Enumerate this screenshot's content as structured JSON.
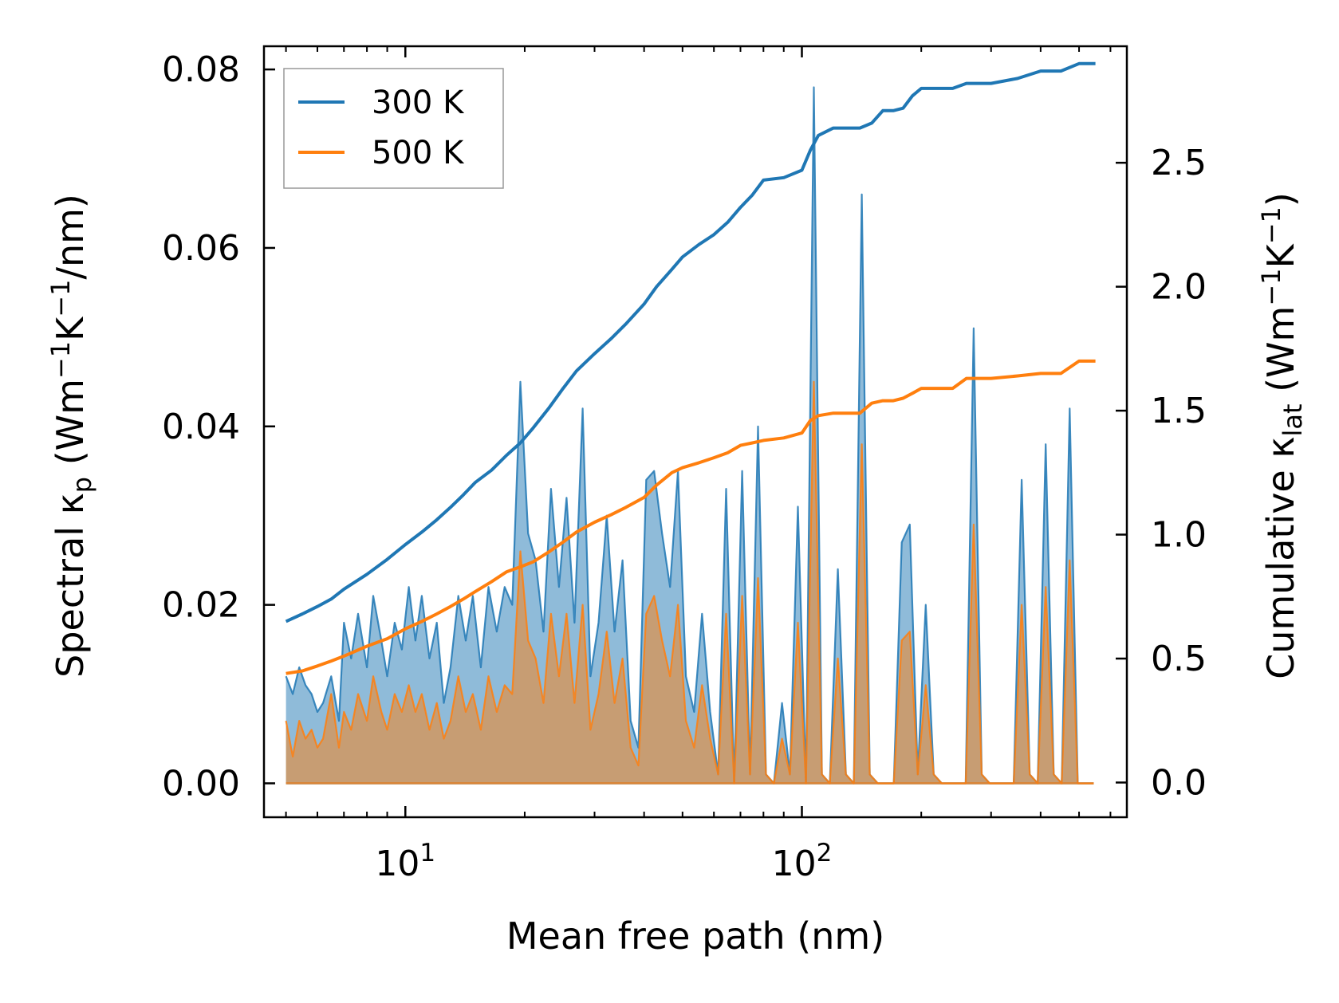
{
  "chart_data": {
    "type": "line",
    "xscale": "log",
    "xlim": [
      4.4,
      660
    ],
    "ylim_left": [
      -0.0038,
      0.0826
    ],
    "ylim_right": [
      -0.14,
      2.97
    ],
    "xlabel": "Mean free path (nm)",
    "ylabel_left": {
      "main": "Spectral κ",
      "sub": "p",
      "paren_open": " (Wm",
      "sup1": "−1",
      "mid": "K",
      "sup2": "−1",
      "tail": "/nm)"
    },
    "ylabel_right": {
      "main": "Cumulative κ",
      "sub": "lat",
      "paren_open": " (Wm",
      "sup1": "−1",
      "mid": "K",
      "sup2": "−1",
      "tail": ")"
    },
    "x_ticks": [
      {
        "value": 10,
        "base": "10",
        "exp": "1"
      },
      {
        "value": 100,
        "base": "10",
        "exp": "2"
      }
    ],
    "y_ticks_left": [
      {
        "value": 0.0,
        "label": "0.00"
      },
      {
        "value": 0.02,
        "label": "0.02"
      },
      {
        "value": 0.04,
        "label": "0.04"
      },
      {
        "value": 0.06,
        "label": "0.06"
      },
      {
        "value": 0.08,
        "label": "0.08"
      }
    ],
    "y_ticks_right": [
      {
        "value": 0.0,
        "label": "0.0"
      },
      {
        "value": 0.5,
        "label": "0.5"
      },
      {
        "value": 1.0,
        "label": "1.0"
      },
      {
        "value": 1.5,
        "label": "1.5"
      },
      {
        "value": 2.0,
        "label": "2.0"
      },
      {
        "value": 2.5,
        "label": "2.5"
      }
    ],
    "legend": {
      "position": "top-left",
      "entries": [
        {
          "name": "300 K",
          "color": "#1f77b4"
        },
        {
          "name": "500 K",
          "color": "#ff7f0e"
        }
      ]
    },
    "spectral": [
      {
        "name": "300 K",
        "color": "#1f77b4",
        "fill_opacity": 0.5,
        "x": [
          5.0,
          5.2,
          5.4,
          5.6,
          5.8,
          6.0,
          6.2,
          6.5,
          6.8,
          7.0,
          7.3,
          7.6,
          8.0,
          8.3,
          8.7,
          9.0,
          9.4,
          9.8,
          10.2,
          10.6,
          11.0,
          11.5,
          12.0,
          12.5,
          13.0,
          13.6,
          14.2,
          14.8,
          15.5,
          16.2,
          17.0,
          17.8,
          18.6,
          19.5,
          20.4,
          21.3,
          22.3,
          23.3,
          24.4,
          25.5,
          26.7,
          28.0,
          29.3,
          30.7,
          32.2,
          33.7,
          35.3,
          37.0,
          38.7,
          40.5,
          42.4,
          44.4,
          46.5,
          48.7,
          51.0,
          53.5,
          56.0,
          58.7,
          61.5,
          64.4,
          67.5,
          70.7,
          74.0,
          77.5,
          81.2,
          85.0,
          89.1,
          93.3,
          97.7,
          102.4,
          107.2,
          112.3,
          117.6,
          123.2,
          129.1,
          135.2,
          141.6,
          148.3,
          155.4,
          162.8,
          170.5,
          178.6,
          187.1,
          196.0,
          205.3,
          215.0,
          225.3,
          236.0,
          247.2,
          258.9,
          271.2,
          284.1,
          297.6,
          311.8,
          326.6,
          342.1,
          358.4,
          375.4,
          393.3,
          412.0,
          431.6,
          452.1,
          473.6,
          496.1,
          519.7,
          544.4
        ],
        "y": [
          0.012,
          0.01,
          0.013,
          0.011,
          0.01,
          0.008,
          0.009,
          0.012,
          0.007,
          0.018,
          0.014,
          0.019,
          0.013,
          0.021,
          0.016,
          0.012,
          0.018,
          0.015,
          0.022,
          0.016,
          0.021,
          0.014,
          0.018,
          0.009,
          0.013,
          0.021,
          0.016,
          0.021,
          0.013,
          0.022,
          0.017,
          0.022,
          0.02,
          0.045,
          0.028,
          0.025,
          0.017,
          0.033,
          0.022,
          0.032,
          0.018,
          0.042,
          0.012,
          0.018,
          0.03,
          0.017,
          0.025,
          0.007,
          0.004,
          0.034,
          0.035,
          0.028,
          0.022,
          0.035,
          0.012,
          0.008,
          0.019,
          0.008,
          0.001,
          0.033,
          0.0,
          0.035,
          0.001,
          0.04,
          0.001,
          0.0,
          0.009,
          0.001,
          0.031,
          0.0,
          0.078,
          0.001,
          0.0,
          0.024,
          0.001,
          0.0,
          0.066,
          0.001,
          0.0,
          0.0,
          0.0,
          0.027,
          0.029,
          0.001,
          0.02,
          0.001,
          0.0,
          0.0,
          0.0,
          0.0,
          0.051,
          0.001,
          0.0,
          0.0,
          0.0,
          0.0,
          0.034,
          0.001,
          0.0,
          0.038,
          0.001,
          0.0,
          0.042,
          0.0,
          0.0,
          0.0
        ]
      },
      {
        "name": "500 K",
        "color": "#ff7f0e",
        "fill_opacity": 0.5,
        "x": [
          5.0,
          5.2,
          5.4,
          5.6,
          5.8,
          6.0,
          6.2,
          6.5,
          6.8,
          7.0,
          7.3,
          7.6,
          8.0,
          8.3,
          8.7,
          9.0,
          9.4,
          9.8,
          10.2,
          10.6,
          11.0,
          11.5,
          12.0,
          12.5,
          13.0,
          13.6,
          14.2,
          14.8,
          15.5,
          16.2,
          17.0,
          17.8,
          18.6,
          19.5,
          20.4,
          21.3,
          22.3,
          23.3,
          24.4,
          25.5,
          26.7,
          28.0,
          29.3,
          30.7,
          32.2,
          33.7,
          35.3,
          37.0,
          38.7,
          40.5,
          42.4,
          44.4,
          46.5,
          48.7,
          51.0,
          53.5,
          56.0,
          58.7,
          61.5,
          64.4,
          67.5,
          70.7,
          74.0,
          77.5,
          81.2,
          85.0,
          89.1,
          93.3,
          97.7,
          102.4,
          107.2,
          112.3,
          117.6,
          123.2,
          129.1,
          135.2,
          141.6,
          148.3,
          155.4,
          162.8,
          170.5,
          178.6,
          187.1,
          196.0,
          205.3,
          215.0,
          225.3,
          236.0,
          247.2,
          258.9,
          271.2,
          284.1,
          297.6,
          311.8,
          326.6,
          342.1,
          358.4,
          375.4,
          393.3,
          412.0,
          431.6,
          452.1,
          473.6,
          496.1,
          519.7,
          544.4
        ],
        "y": [
          0.007,
          0.003,
          0.007,
          0.005,
          0.006,
          0.004,
          0.005,
          0.01,
          0.004,
          0.008,
          0.006,
          0.01,
          0.007,
          0.012,
          0.008,
          0.006,
          0.01,
          0.008,
          0.011,
          0.008,
          0.01,
          0.006,
          0.009,
          0.005,
          0.007,
          0.012,
          0.008,
          0.01,
          0.006,
          0.012,
          0.008,
          0.011,
          0.01,
          0.026,
          0.016,
          0.014,
          0.009,
          0.019,
          0.012,
          0.019,
          0.009,
          0.02,
          0.006,
          0.01,
          0.017,
          0.009,
          0.014,
          0.004,
          0.002,
          0.019,
          0.021,
          0.016,
          0.012,
          0.02,
          0.007,
          0.004,
          0.011,
          0.005,
          0.001,
          0.019,
          0.0,
          0.021,
          0.001,
          0.023,
          0.001,
          0.0,
          0.005,
          0.001,
          0.018,
          0.0,
          0.045,
          0.001,
          0.0,
          0.014,
          0.001,
          0.0,
          0.038,
          0.001,
          0.0,
          0.0,
          0.0,
          0.016,
          0.017,
          0.001,
          0.011,
          0.001,
          0.0,
          0.0,
          0.0,
          0.0,
          0.029,
          0.001,
          0.0,
          0.0,
          0.0,
          0.0,
          0.02,
          0.001,
          0.0,
          0.022,
          0.001,
          0.0,
          0.025,
          0.0,
          0.0,
          0.0
        ]
      }
    ],
    "cumulative": [
      {
        "name": "300 K",
        "color": "#1f77b4",
        "x": [
          5.0,
          5.5,
          6.0,
          6.5,
          7.0,
          8.0,
          9.0,
          10.0,
          11.0,
          12.0,
          13.0,
          14.0,
          15.0,
          16.5,
          18.0,
          19.5,
          21.0,
          23.0,
          25.0,
          27.0,
          30.0,
          33.0,
          36.0,
          40.0,
          43.0,
          47.0,
          50.0,
          55.0,
          60.0,
          65.0,
          70.0,
          75.0,
          80.0,
          90.0,
          100.0,
          105.0,
          110.0,
          120.0,
          130.0,
          140.0,
          150.0,
          160.0,
          170.0,
          180.0,
          190.0,
          200.0,
          240.0,
          260.0,
          300.0,
          350.0,
          400.0,
          450.0,
          500.0,
          550.0
        ],
        "y": [
          0.65,
          0.68,
          0.71,
          0.74,
          0.78,
          0.84,
          0.9,
          0.96,
          1.01,
          1.06,
          1.11,
          1.16,
          1.21,
          1.26,
          1.32,
          1.37,
          1.43,
          1.51,
          1.59,
          1.66,
          1.73,
          1.79,
          1.85,
          1.93,
          2.0,
          2.07,
          2.12,
          2.17,
          2.21,
          2.26,
          2.32,
          2.37,
          2.43,
          2.44,
          2.47,
          2.55,
          2.61,
          2.64,
          2.64,
          2.64,
          2.66,
          2.71,
          2.71,
          2.72,
          2.77,
          2.8,
          2.8,
          2.82,
          2.82,
          2.84,
          2.87,
          2.87,
          2.9,
          2.9
        ]
      },
      {
        "name": "500 K",
        "color": "#ff7f0e",
        "x": [
          5.0,
          5.5,
          6.0,
          6.5,
          7.0,
          8.0,
          9.0,
          10.0,
          11.0,
          12.0,
          13.0,
          14.0,
          15.0,
          16.5,
          18.0,
          19.5,
          21.0,
          23.0,
          25.0,
          27.0,
          30.0,
          33.0,
          36.0,
          40.0,
          43.0,
          47.0,
          50.0,
          55.0,
          60.0,
          65.0,
          70.0,
          75.0,
          80.0,
          90.0,
          100.0,
          105.0,
          110.0,
          120.0,
          130.0,
          140.0,
          150.0,
          160.0,
          170.0,
          180.0,
          190.0,
          200.0,
          240.0,
          260.0,
          300.0,
          350.0,
          400.0,
          450.0,
          500.0,
          550.0
        ],
        "y": [
          0.44,
          0.45,
          0.47,
          0.49,
          0.51,
          0.55,
          0.58,
          0.62,
          0.65,
          0.68,
          0.71,
          0.74,
          0.77,
          0.81,
          0.85,
          0.87,
          0.89,
          0.93,
          0.97,
          1.01,
          1.05,
          1.08,
          1.11,
          1.15,
          1.2,
          1.25,
          1.27,
          1.29,
          1.31,
          1.33,
          1.36,
          1.37,
          1.38,
          1.39,
          1.41,
          1.46,
          1.48,
          1.49,
          1.49,
          1.49,
          1.53,
          1.54,
          1.54,
          1.55,
          1.57,
          1.59,
          1.59,
          1.63,
          1.63,
          1.64,
          1.65,
          1.65,
          1.7,
          1.7
        ]
      }
    ]
  }
}
